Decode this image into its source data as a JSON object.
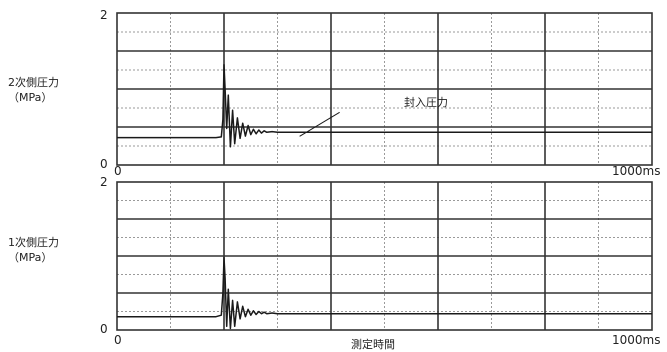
{
  "chart_data": [
    {
      "type": "line",
      "ylabel": "2次側圧力",
      "yunit": "（MPa）",
      "ylim": [
        0,
        2
      ],
      "xlim": [
        0,
        1000
      ],
      "xtick_labels": [
        "0",
        "1000ms"
      ],
      "ytick_labels": [
        "0",
        "2"
      ],
      "grid": true,
      "annotations": [
        {
          "text": "封入圧力",
          "x": 375,
          "y": 0.43
        }
      ],
      "series": [
        {
          "x": [
            0,
            100,
            150,
            175,
            185,
            195,
            198,
            200,
            202,
            205,
            208,
            212,
            216,
            220,
            225,
            230,
            235,
            240,
            245,
            250,
            255,
            260,
            265,
            270,
            275,
            280,
            290,
            300,
            320,
            350,
            400,
            500,
            600,
            700,
            800,
            900,
            1000
          ],
          "y": [
            0.36,
            0.36,
            0.36,
            0.36,
            0.36,
            0.37,
            0.6,
            1.32,
            1.0,
            0.48,
            0.92,
            0.24,
            0.72,
            0.28,
            0.62,
            0.35,
            0.55,
            0.38,
            0.52,
            0.4,
            0.47,
            0.41,
            0.46,
            0.42,
            0.45,
            0.43,
            0.44,
            0.43,
            0.43,
            0.43,
            0.43,
            0.43,
            0.43,
            0.43,
            0.43,
            0.43,
            0.43
          ]
        }
      ]
    },
    {
      "type": "line",
      "ylabel": "1次側圧力",
      "yunit": "（MPa）",
      "ylim": [
        0,
        2
      ],
      "xlim": [
        0,
        1000
      ],
      "xtick_labels": [
        "0",
        "1000ms"
      ],
      "ytick_labels": [
        "0",
        "2"
      ],
      "grid": true,
      "series": [
        {
          "x": [
            0,
            100,
            150,
            175,
            185,
            195,
            198,
            200,
            202,
            205,
            208,
            212,
            216,
            220,
            225,
            230,
            235,
            240,
            245,
            250,
            255,
            260,
            265,
            270,
            275,
            280,
            290,
            300,
            320,
            350,
            400,
            500,
            600,
            700,
            800,
            900,
            1000
          ],
          "y": [
            0.18,
            0.18,
            0.18,
            0.18,
            0.18,
            0.2,
            0.5,
            0.98,
            0.7,
            0.05,
            0.55,
            0.02,
            0.4,
            0.05,
            0.38,
            0.15,
            0.32,
            0.18,
            0.28,
            0.2,
            0.26,
            0.21,
            0.25,
            0.22,
            0.24,
            0.22,
            0.23,
            0.22,
            0.22,
            0.22,
            0.22,
            0.22,
            0.22,
            0.22,
            0.22,
            0.22,
            0.22
          ]
        }
      ]
    }
  ],
  "xlabel": "測定時間",
  "colors": {
    "line": "#1a1a1a",
    "grid_major": "#333333",
    "grid_minor": "#9a9a9a",
    "background": "#ffffff"
  }
}
